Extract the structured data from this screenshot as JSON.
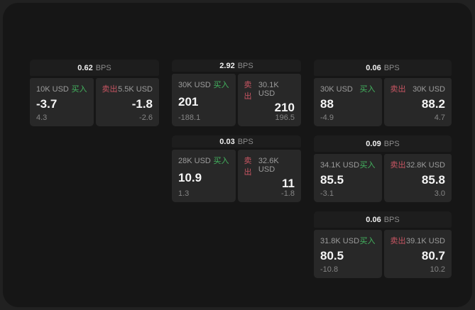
{
  "colors": {
    "backdrop": "#212121",
    "window_bg": "#161616",
    "card_header_bg": "#1d1d1d",
    "panel_bg": "#282828",
    "buy_accent": "#43b45f",
    "sell_accent": "#c75562"
  },
  "bps_unit": "BPS",
  "cards": [
    {
      "bps_value": "0.62",
      "buy": {
        "amount": "10K USD",
        "label": "买入",
        "price": "-3.7",
        "delta": "4.3"
      },
      "sell": {
        "label": "卖出",
        "amount": "5.5K USD",
        "price": "-1.8",
        "delta": "-2.6"
      }
    },
    {
      "bps_value": "2.92",
      "buy": {
        "amount": "30K USD",
        "label": "买入",
        "price": "201",
        "delta": "-188.1"
      },
      "sell": {
        "label": "卖出",
        "amount": "30.1K USD",
        "price": "210",
        "delta": "196.5"
      }
    },
    {
      "bps_value": "0.06",
      "buy": {
        "amount": "30K USD",
        "label": "买入",
        "price": "88",
        "delta": "-4.9"
      },
      "sell": {
        "label": "卖出",
        "amount": "30K USD",
        "price": "88.2",
        "delta": "4.7"
      }
    },
    {
      "bps_value": "0.03",
      "buy": {
        "amount": "28K USD",
        "label": "买入",
        "price": "10.9",
        "delta": "1.3"
      },
      "sell": {
        "label": "卖出",
        "amount": "32.6K USD",
        "price": "11",
        "delta": "-1.8"
      }
    },
    {
      "bps_value": "0.09",
      "buy": {
        "amount": "34.1K USD",
        "label": "买入",
        "price": "85.5",
        "delta": "-3.1"
      },
      "sell": {
        "label": "卖出",
        "amount": "32.8K USD",
        "price": "85.8",
        "delta": "3.0"
      }
    },
    {
      "bps_value": "0.06",
      "buy": {
        "amount": "31.8K USD",
        "label": "买入",
        "price": "80.5",
        "delta": "-10.8"
      },
      "sell": {
        "label": "卖出",
        "amount": "39.1K USD",
        "price": "80.7",
        "delta": "10.2"
      }
    }
  ]
}
